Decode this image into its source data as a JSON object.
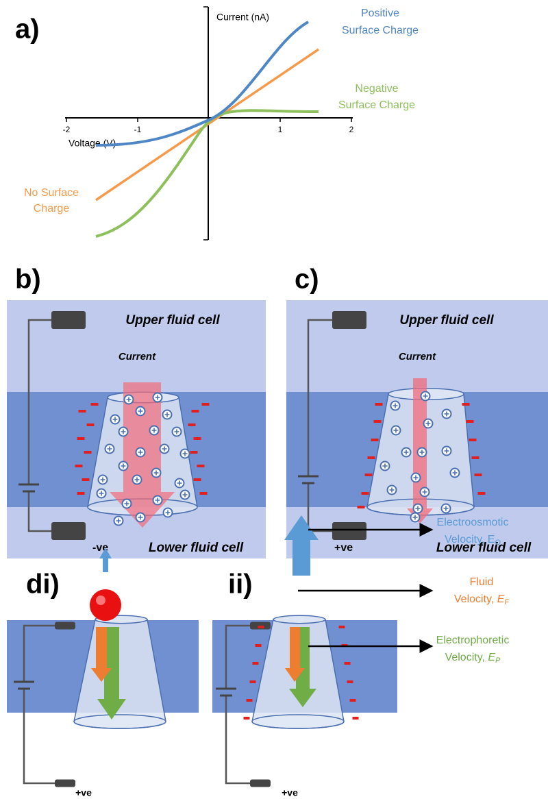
{
  "panel_a": {
    "label": "a)",
    "y_axis_label": "Current (nA)",
    "x_axis_label": "Voltage (V)",
    "xticks": [
      -2,
      -1,
      1,
      2
    ],
    "positive": [
      "Positive",
      "Surface Charge"
    ],
    "negative": [
      "Negative",
      "Surface Charge"
    ],
    "none": [
      "No Surface",
      "Charge"
    ]
  },
  "panel_b": {
    "label": "b)",
    "upper": "Upper fluid cell",
    "current": "Current",
    "polarity": "-ve",
    "lower": "Lower fluid cell"
  },
  "panel_c": {
    "label": "c)",
    "upper": "Upper fluid cell",
    "current": "Current",
    "polarity": "+ve",
    "lower": "Lower fluid cell"
  },
  "panel_d": {
    "label_i": "di)",
    "label_ii": "ii)",
    "polarity_i": "+ve",
    "polarity_ii": "+ve",
    "electroosmotic": {
      "line1": "Electroosmotic",
      "line2": "Velocity, E",
      "sub": "O"
    },
    "fluid": {
      "line1": "Fluid",
      "line2": "Velocity, ",
      "symbol": "E",
      "sub": "F"
    },
    "electrophoretic": {
      "line1": "Electrophoretic",
      "line2": "Velocity, ",
      "symbol": "E",
      "sub": "P"
    }
  }
}
